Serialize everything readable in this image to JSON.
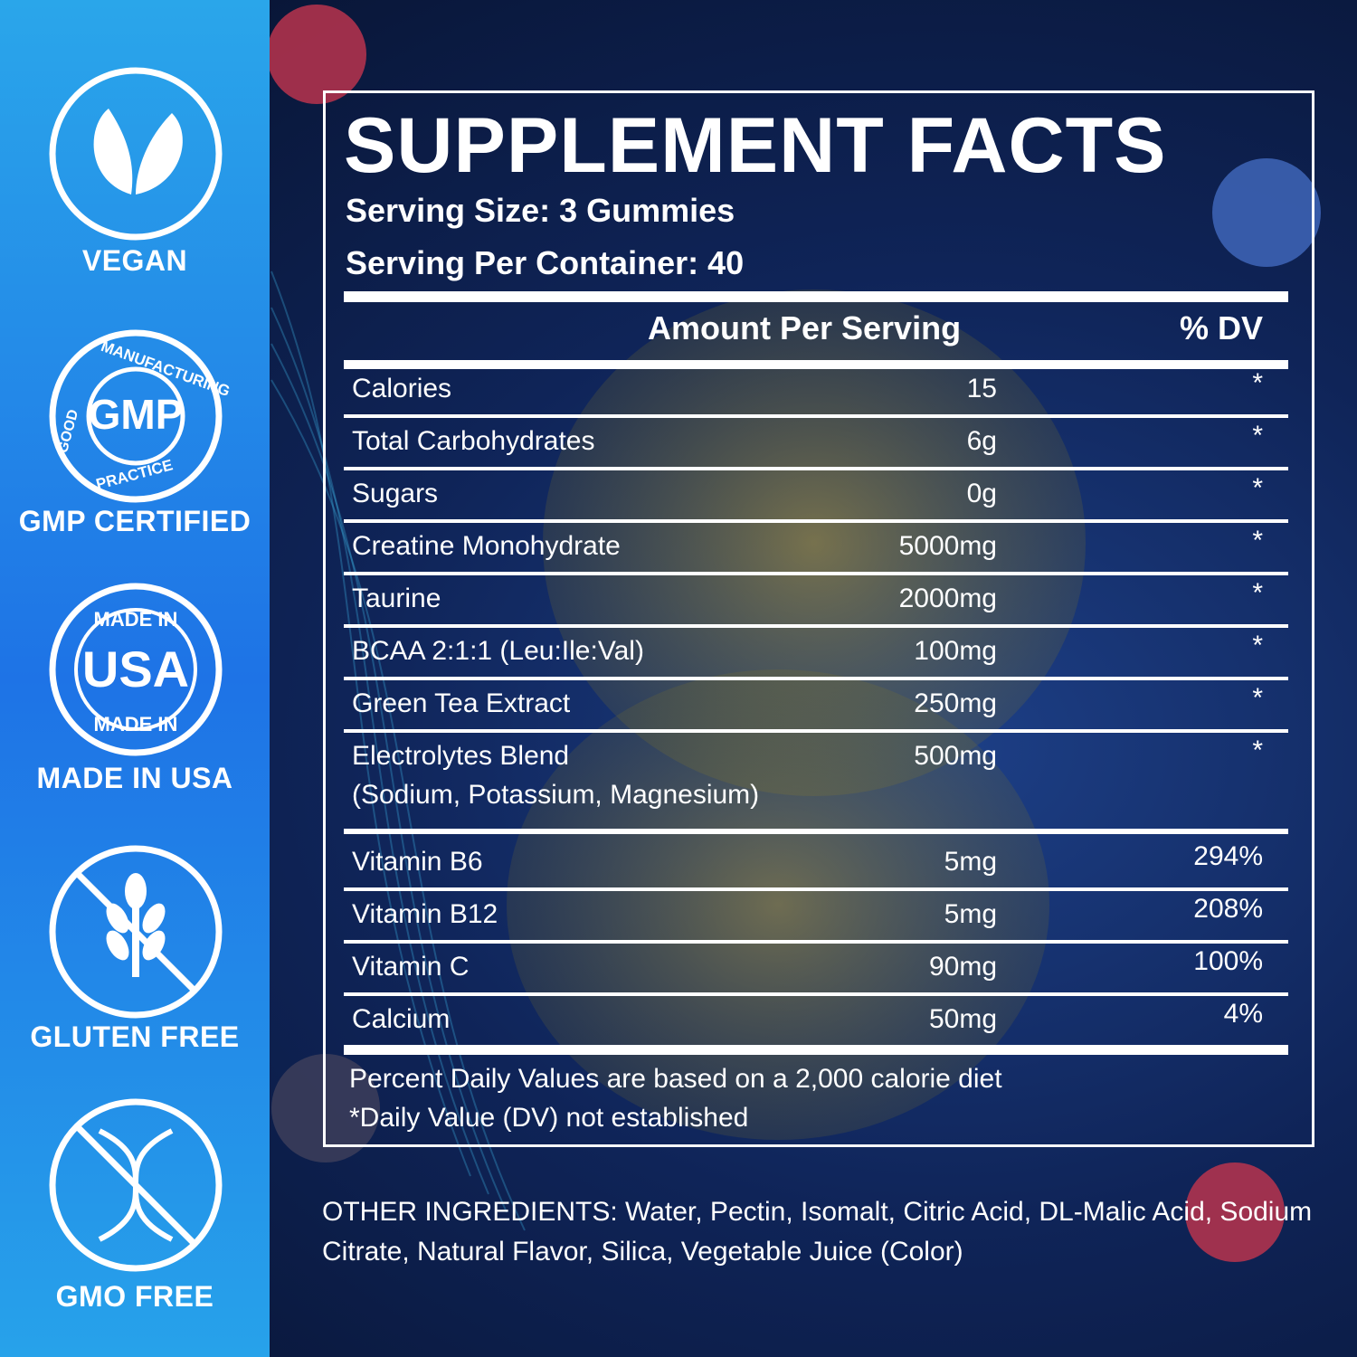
{
  "badges": [
    {
      "label": "VEGAN"
    },
    {
      "label": "GMP CERTIFIED",
      "ring_top": "MANUFACTURING",
      "ring_left": "GOOD",
      "ring_right": "PRACTICE",
      "center": "GMP"
    },
    {
      "label": "MADE IN USA",
      "ring_top": "MADE IN",
      "center": "USA",
      "ring_bottom": "MADE IN"
    },
    {
      "label": "GLUTEN FREE"
    },
    {
      "label": "GMO FREE"
    }
  ],
  "facts": {
    "title": "SUPPLEMENT FACTS",
    "serving_size": "Serving Size: 3 Gummies",
    "servings_per_container": "Serving Per Container: 40",
    "header_amount": "Amount Per Serving",
    "header_dv": "% DV",
    "rows": [
      {
        "name": "Calories",
        "amount": "15",
        "dv": "*"
      },
      {
        "name": "Total Carbohydrates",
        "amount": "6g",
        "dv": "*"
      },
      {
        "name": "Sugars",
        "amount": "0g",
        "dv": "*"
      },
      {
        "name": "Creatine Monohydrate",
        "amount": "5000mg",
        "dv": "*"
      },
      {
        "name": "Taurine",
        "amount": "2000mg",
        "dv": "*"
      },
      {
        "name": "BCAA 2:1:1 (Leu:Ile:Val)",
        "amount": "100mg",
        "dv": "*"
      },
      {
        "name": "Green Tea Extract",
        "amount": "250mg",
        "dv": "*"
      },
      {
        "name": "Electrolytes Blend",
        "detail": "(Sodium, Potassium, Magnesium)",
        "amount": "500mg",
        "dv": "*"
      }
    ],
    "vitamins": [
      {
        "name": "Vitamin B6",
        "amount": "5mg",
        "dv": "294%"
      },
      {
        "name": "Vitamin B12",
        "amount": "5mg",
        "dv": "208%"
      },
      {
        "name": "Vitamin C",
        "amount": "90mg",
        "dv": "100%"
      },
      {
        "name": "Calcium",
        "amount": "50mg",
        "dv": "4%"
      }
    ],
    "footnote_1": "Percent Daily Values are based on a 2,000 calorie diet",
    "footnote_2": "*Daily Value (DV) not established"
  },
  "other_ingredients": "OTHER INGREDIENTS: Water, Pectin, Isomalt, Citric Acid, DL-Malic Acid, Sodium Citrate, Natural Flavor, Silica, Vegetable Juice (Color)"
}
